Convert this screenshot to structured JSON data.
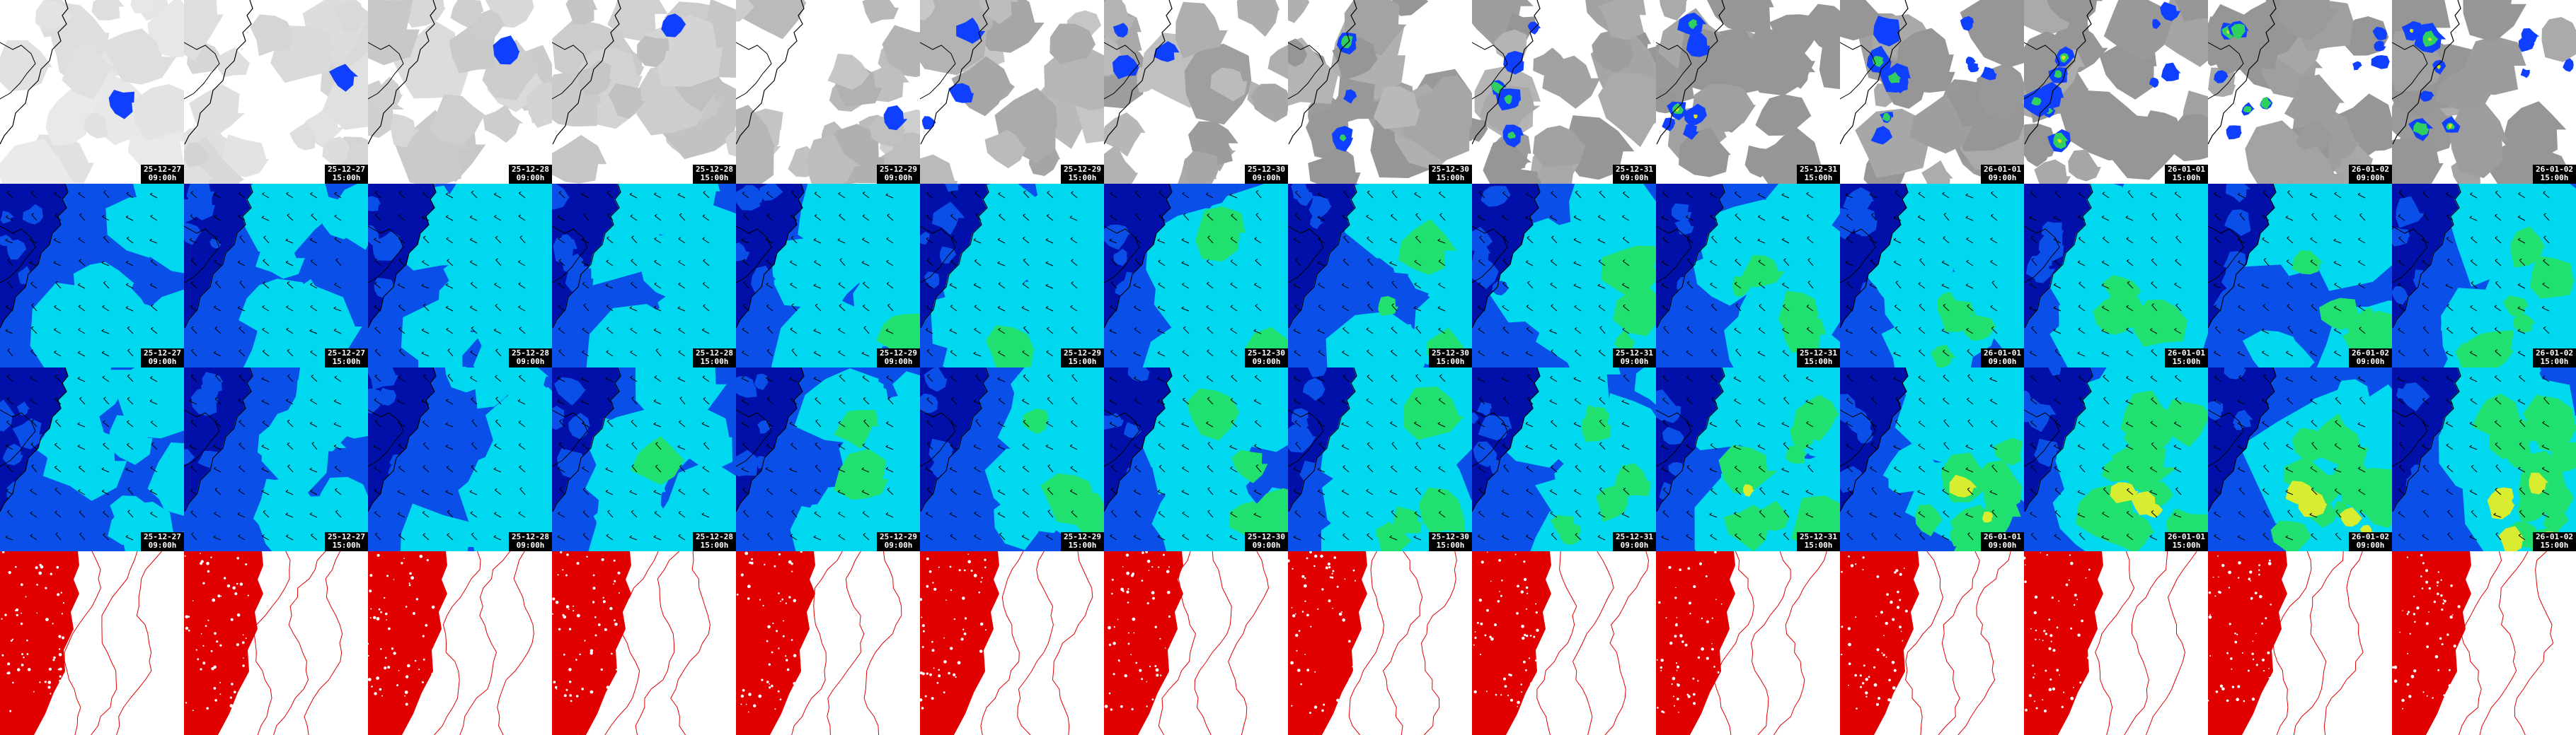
{
  "rows": [
    {
      "name": "precip",
      "kind": "precip"
    },
    {
      "name": "wind-a",
      "kind": "wind"
    },
    {
      "name": "wind-b",
      "kind": "wind"
    },
    {
      "name": "contour",
      "kind": "contour"
    }
  ],
  "frames": [
    {
      "date": "25-12-27",
      "time": "09:00h"
    },
    {
      "date": "25-12-27",
      "time": "15:00h"
    },
    {
      "date": "25-12-28",
      "time": "09:00h"
    },
    {
      "date": "25-12-28",
      "time": "15:00h"
    },
    {
      "date": "25-12-29",
      "time": "09:00h"
    },
    {
      "date": "25-12-29",
      "time": "15:00h"
    },
    {
      "date": "25-12-30",
      "time": "09:00h"
    },
    {
      "date": "25-12-30",
      "time": "15:00h"
    },
    {
      "date": "25-12-31",
      "time": "09:00h"
    },
    {
      "date": "25-12-31",
      "time": "15:00h"
    },
    {
      "date": "26-01-01",
      "time": "09:00h"
    },
    {
      "date": "26-01-01",
      "time": "15:00h"
    },
    {
      "date": "26-01-02",
      "time": "09:00h"
    },
    {
      "date": "26-01-02",
      "time": "15:00h"
    }
  ],
  "colors": {
    "precip_bg_light": "#ffffff",
    "precip_bg_dark": "#9e9e9e",
    "precip_blue": "#1040ff",
    "precip_green": "#30d060",
    "precip_yellow": "#d8e020",
    "wind_navy": "#0010a8",
    "wind_blue": "#0a50e8",
    "wind_cyan": "#00d8f0",
    "wind_green": "#20e070",
    "wind_yellow": "#d8ec30",
    "contour_red": "#e00000",
    "coast": "#000000"
  },
  "icons": [
    "wind-barb-icon"
  ]
}
